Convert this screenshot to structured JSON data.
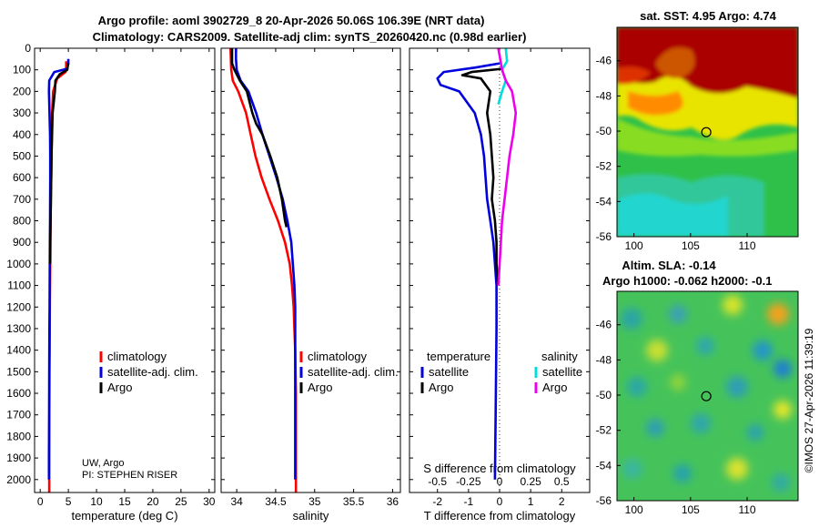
{
  "header": {
    "line1": "Argo profile: aoml 3902729_8 20-Apr-2026 50.06S 106.39E (NRT data)",
    "line2": "Climatology: CARS2009. Satellite-adj clim: synTS_20260420.nc (0.98d earlier)"
  },
  "colors": {
    "climatology": "#ff0000",
    "satellite": "#0000dd",
    "argo": "#000000",
    "sat_salinity": "#00dddd",
    "argo_salinity": "#ee00ee"
  },
  "legend": {
    "climatology": "climatology",
    "satellite_adj": "satellite-adj. clim.",
    "argo": "Argo",
    "temperature": "temperature",
    "salinity": "salinity",
    "satellite": "satellite"
  },
  "credit": {
    "line1": "UW, Argo",
    "line2": "PI: STEPHEN RISER"
  },
  "chart_data": [
    {
      "type": "line",
      "name": "temperature-profile",
      "xlabel": "temperature (deg C)",
      "ylabel": "",
      "xlim": [
        -1,
        31
      ],
      "ylim": [
        2060,
        0
      ],
      "xticks": [
        0,
        5,
        10,
        15,
        20,
        25,
        30
      ],
      "yticks": [
        0,
        100,
        200,
        300,
        400,
        500,
        600,
        700,
        800,
        900,
        1000,
        1100,
        1200,
        1300,
        1400,
        1500,
        1600,
        1700,
        1800,
        1900,
        2000
      ],
      "series": [
        {
          "name": "climatology",
          "color": "#ff0000",
          "x": [
            4.6,
            4.6,
            4.5,
            3.0,
            2.3,
            2.1,
            2.05,
            2.0,
            1.95,
            1.9,
            1.85,
            1.8,
            1.78,
            1.75,
            1.72,
            1.7,
            1.68,
            1.65,
            1.62,
            1.6,
            1.6
          ],
          "y": [
            60,
            90,
            110,
            140,
            200,
            300,
            400,
            500,
            600,
            700,
            800,
            900,
            1000,
            1100,
            1200,
            1300,
            1400,
            1500,
            1700,
            2000,
            2060
          ]
        },
        {
          "name": "satellite-adj. clim.",
          "color": "#0000dd",
          "x": [
            5.0,
            5.0,
            4.8,
            2.5,
            1.6,
            1.55,
            1.65,
            1.75,
            1.78,
            1.78,
            1.76,
            1.74,
            1.72,
            1.7,
            1.68,
            1.66,
            1.64,
            1.62,
            1.6,
            1.58,
            1.56,
            1.55
          ],
          "y": [
            50,
            70,
            95,
            110,
            150,
            200,
            300,
            400,
            500,
            600,
            700,
            800,
            900,
            1000,
            1100,
            1200,
            1300,
            1400,
            1500,
            1700,
            1900,
            2000
          ]
        },
        {
          "name": "Argo",
          "color": "#000000",
          "x": [
            5.0,
            4.9,
            4.8,
            3.5,
            2.7,
            2.6,
            2.2,
            2.1,
            2.0,
            1.95,
            1.9,
            1.85,
            1.8,
            1.78
          ],
          "y": [
            70,
            80,
            100,
            120,
            150,
            200,
            300,
            400,
            500,
            600,
            700,
            800,
            900,
            1000
          ]
        }
      ]
    },
    {
      "type": "line",
      "name": "salinity-profile",
      "xlabel": "salinity",
      "xlim": [
        33.8,
        36.1
      ],
      "ylim": [
        2060,
        0
      ],
      "xticks": [
        34,
        34.5,
        35,
        35.5,
        36
      ],
      "series": [
        {
          "name": "climatology",
          "color": "#ff0000",
          "x": [
            33.92,
            33.93,
            33.95,
            34.02,
            34.12,
            34.18,
            34.24,
            34.32,
            34.42,
            34.53,
            34.62,
            34.68,
            34.71,
            34.73,
            34.74,
            34.75,
            34.76,
            34.76
          ],
          "y": [
            0,
            100,
            150,
            200,
            300,
            400,
            500,
            600,
            700,
            800,
            900,
            1000,
            1100,
            1200,
            1300,
            1400,
            1600,
            2060
          ]
        },
        {
          "name": "satellite-adj. clim.",
          "color": "#0000dd",
          "x": [
            33.99,
            33.99,
            34.0,
            34.05,
            34.15,
            34.25,
            34.33,
            34.42,
            34.51,
            34.59,
            34.65,
            34.7,
            34.72,
            34.74,
            34.75,
            34.75,
            34.75,
            34.75
          ],
          "y": [
            0,
            50,
            100,
            150,
            200,
            300,
            400,
            500,
            600,
            700,
            800,
            900,
            1000,
            1100,
            1200,
            1400,
            1600,
            2000
          ]
        },
        {
          "name": "Argo",
          "color": "#000000",
          "x": [
            33.94,
            33.94,
            33.97,
            34.04,
            34.13,
            34.2,
            34.25,
            34.33,
            34.43,
            34.52,
            34.58,
            34.62,
            34.64
          ],
          "y": [
            0,
            70,
            100,
            150,
            200,
            300,
            350,
            400,
            500,
            600,
            700,
            800,
            830
          ]
        }
      ]
    },
    {
      "type": "line",
      "name": "difference-from-climatology",
      "xlabel": "T difference from climatology",
      "xlabel2": "S difference from climatology",
      "xlim": [
        -2.9,
        2.9
      ],
      "ylim": [
        2060,
        0
      ],
      "xticks": [
        -2,
        -1,
        0,
        1,
        2
      ],
      "xticks_labels": [
        "-2",
        "-1",
        "0",
        "1",
        "2"
      ],
      "s_xticks": [
        -0.5,
        -0.25,
        0,
        0.25,
        0.5
      ],
      "s_xticks_labels": [
        "-0.5",
        "-0.25",
        "0",
        "0.25",
        "0.5"
      ],
      "series": [
        {
          "name": "temperature satellite",
          "color": "#0000dd",
          "unit": "T",
          "x": [
            0,
            -0.8,
            -1.8,
            -2.0,
            -1.9,
            -1.3,
            -0.8,
            -0.6,
            -0.5,
            -0.45,
            -0.4,
            -0.3,
            -0.2,
            -0.15,
            -0.1,
            -0.1,
            -0.12,
            -0.15
          ],
          "y": [
            70,
            90,
            110,
            140,
            170,
            200,
            300,
            400,
            500,
            600,
            700,
            800,
            900,
            1000,
            1100,
            1300,
            1600,
            2000
          ]
        },
        {
          "name": "temperature Argo",
          "color": "#000000",
          "unit": "T",
          "x": [
            0.1,
            -0.9,
            -1.2,
            -0.6,
            -0.3,
            -0.4,
            -0.3,
            -0.25,
            -0.2,
            -0.25,
            -0.15,
            -0.1,
            -0.1,
            -0.05
          ],
          "y": [
            95,
            110,
            125,
            140,
            200,
            300,
            400,
            500,
            600,
            700,
            800,
            900,
            1000,
            1100
          ]
        },
        {
          "name": "salinity satellite",
          "color": "#00dddd",
          "unit": "S",
          "x": [
            0.05,
            0.06,
            0.02,
            0.05,
            0.02,
            -0.01
          ],
          "y": [
            0,
            60,
            100,
            150,
            200,
            260
          ]
        },
        {
          "name": "salinity Argo",
          "color": "#ee00ee",
          "unit": "S",
          "x": [
            -0.01,
            0.02,
            0.05,
            0.1,
            0.13,
            0.11,
            0.08,
            0.06,
            0.04,
            0.02,
            0.01,
            0.0,
            -0.01
          ],
          "y": [
            0,
            100,
            150,
            200,
            300,
            400,
            500,
            600,
            700,
            800,
            900,
            1000,
            1100
          ]
        }
      ]
    },
    {
      "type": "heatmap",
      "name": "satellite-sst-map",
      "title": "sat. SST: 4.95 Argo: 4.74",
      "xticks": [
        100,
        105,
        110
      ],
      "yticks": [
        -46,
        -48,
        -50,
        -52,
        -54,
        -56
      ],
      "xlim": [
        98.5,
        114.5
      ],
      "ylim": [
        -56,
        -44.1
      ],
      "argo_position": {
        "lon": 106.39,
        "lat": -50.06
      }
    },
    {
      "type": "heatmap",
      "name": "altimetry-sla-map",
      "title": "Altim. SLA: -0.14",
      "title2": "Argo h1000: -0.062 h2000: -0.1",
      "xticks": [
        100,
        105,
        110
      ],
      "yticks": [
        -46,
        -48,
        -50,
        -52,
        -54,
        -56
      ],
      "xlim": [
        98.5,
        114.5
      ],
      "ylim": [
        -56,
        -44.1
      ],
      "argo_position": {
        "lon": 106.39,
        "lat": -50.06
      }
    }
  ],
  "footer": {
    "stamp": "©IMOS 27-Apr-2026 11:39:19"
  }
}
